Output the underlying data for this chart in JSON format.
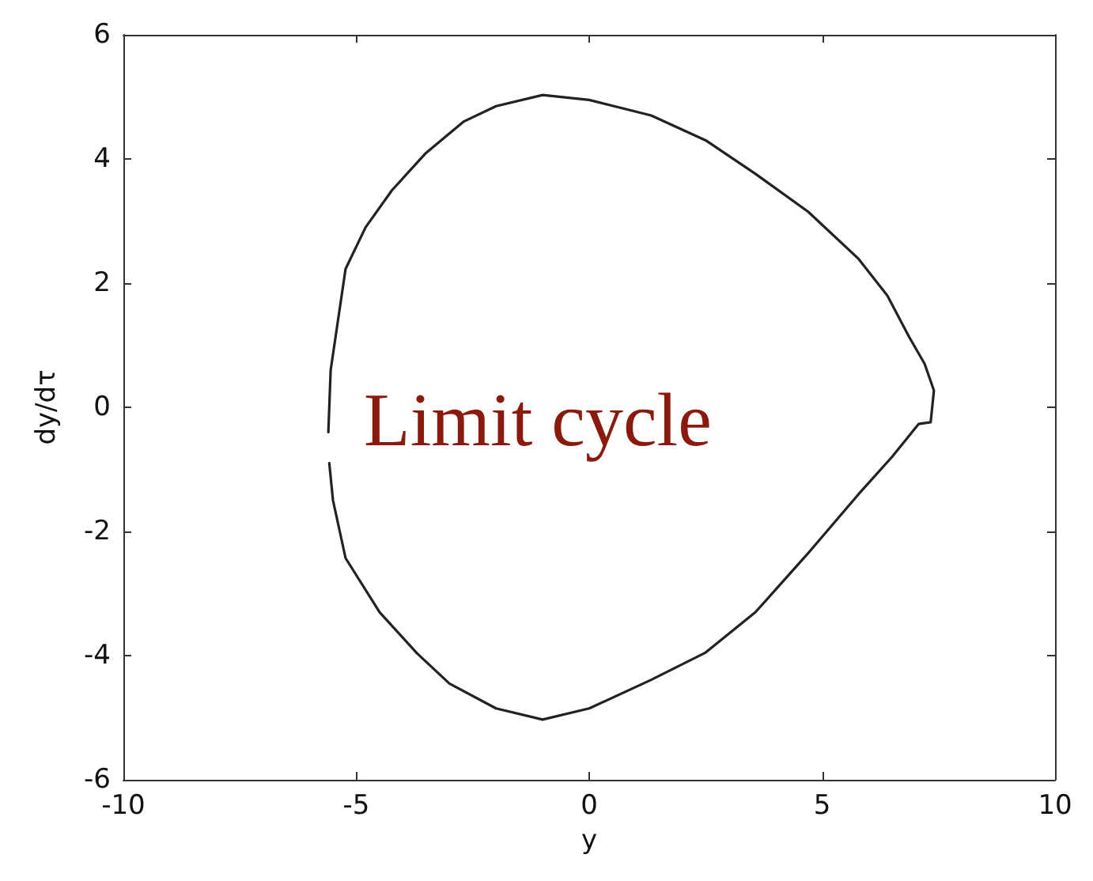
{
  "chart_data": {
    "type": "line",
    "xlabel": "y",
    "ylabel": "dy/dτ",
    "annotations": [
      "Limit cycle"
    ],
    "series": [
      {
        "color": "#222222",
        "x": [
          -5.6,
          -5.55,
          -5.23,
          -4.8,
          -4.23,
          -3.5,
          -2.7,
          -2.0,
          -1.0,
          0,
          1.33,
          2.5,
          3.57,
          4.7,
          5.77,
          6.4,
          6.87,
          7.2,
          7.4,
          7.33,
          7.07,
          6.5,
          5.77,
          4.7,
          3.57,
          2.5,
          1.33,
          0,
          -1.0,
          -2.0,
          -3.0,
          -3.7,
          -4.5,
          -5.23,
          -5.5,
          -5.58
        ],
        "values": [
          -0.4,
          0.6,
          2.23,
          2.9,
          3.5,
          4.1,
          4.6,
          4.85,
          5.03,
          4.95,
          4.7,
          4.3,
          3.76,
          3.15,
          2.4,
          1.8,
          1.13,
          0.7,
          0.27,
          -0.24,
          -0.27,
          -0.8,
          -1.41,
          -2.35,
          -3.3,
          -3.95,
          -4.39,
          -4.85,
          -5.03,
          -4.85,
          -4.45,
          -3.96,
          -3.3,
          -2.43,
          -1.5,
          -0.9
        ]
      }
    ],
    "xlim": [
      -10,
      10
    ],
    "xticks": [
      -10,
      -5,
      0,
      5,
      10
    ],
    "ylim": [
      -6,
      6
    ],
    "yticks": [
      -6,
      -4,
      -2,
      0,
      2,
      4,
      6
    ],
    "grid": false,
    "marker": "none",
    "line_style": "solid"
  }
}
